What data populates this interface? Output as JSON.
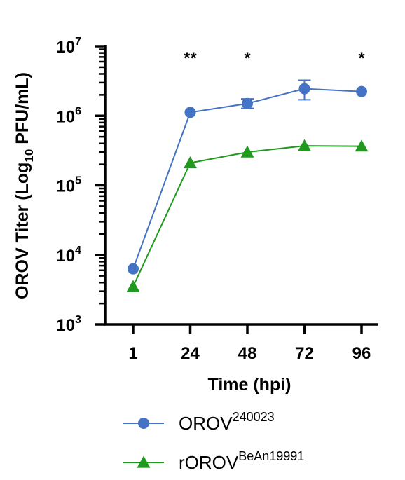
{
  "chart_data": {
    "type": "line",
    "xlabel": "Time (hpi)",
    "ylabel_parts": [
      "OROV Titer (Log",
      "10",
      " PFU/mL)"
    ],
    "categories": [
      "1",
      "24",
      "48",
      "72",
      "96"
    ],
    "y_scale": "log",
    "ylim": [
      1000,
      10000000
    ],
    "y_ticks": [
      {
        "base": "10",
        "exp": "3",
        "value": 1000
      },
      {
        "base": "10",
        "exp": "4",
        "value": 10000
      },
      {
        "base": "10",
        "exp": "5",
        "value": 100000
      },
      {
        "base": "10",
        "exp": "6",
        "value": 1000000
      },
      {
        "base": "10",
        "exp": "7",
        "value": 10000000
      }
    ],
    "series": [
      {
        "name_base": "OROV",
        "name_sup": "240023",
        "color": "#4472C4",
        "marker": "circle",
        "values": [
          6300,
          1120000,
          1500000,
          2450000,
          2230000
        ],
        "error_low": [
          null,
          null,
          1280000,
          1700000,
          null
        ],
        "error_high": [
          null,
          null,
          1750000,
          3250000,
          null
        ]
      },
      {
        "name_base": "rOROV",
        "name_sup": "BeAn19991",
        "color": "#1F9A1F",
        "marker": "triangle",
        "values": [
          3500,
          210000,
          300000,
          370000,
          365000
        ]
      }
    ],
    "annotations": [
      "",
      "**",
      "*",
      "",
      "*"
    ],
    "grid": false,
    "legend_position": "bottom"
  }
}
